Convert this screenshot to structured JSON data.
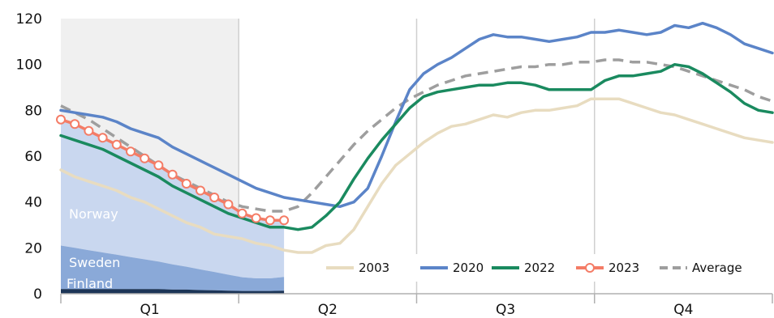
{
  "chart_data": {
    "type": "line",
    "x_unit": "week",
    "x_range": [
      1,
      52
    ],
    "ylim": [
      0,
      120
    ],
    "y_ticks": [
      0,
      20,
      40,
      60,
      80,
      100,
      120
    ],
    "quarters": [
      "Q1",
      "Q2",
      "Q3",
      "Q4"
    ],
    "grid": "vertical lines at quarter boundaries",
    "legend_placement": "bottom-right",
    "shaded_region": {
      "from": 1,
      "to": 13
    },
    "series": [
      {
        "name": "2003",
        "color": "#e8dcc0",
        "x": [
          1,
          2,
          3,
          4,
          5,
          6,
          7,
          8,
          9,
          10,
          11,
          12,
          13,
          14,
          15,
          16,
          17,
          18,
          19,
          20,
          21,
          22,
          23,
          24,
          25,
          26,
          27,
          28,
          29,
          30,
          31,
          32,
          33,
          34,
          35,
          36,
          37,
          38,
          39,
          40,
          41,
          42,
          43,
          44,
          45,
          46,
          47,
          48,
          49,
          50,
          51,
          52
        ],
        "values": [
          54,
          51,
          49,
          47,
          45,
          42,
          40,
          37,
          34,
          31,
          29,
          26,
          25,
          24,
          22,
          21,
          19,
          18,
          18,
          21,
          22,
          28,
          38,
          48,
          56,
          61,
          66,
          70,
          73,
          74,
          76,
          78,
          77,
          79,
          80,
          80,
          81,
          82,
          85,
          85,
          85,
          83,
          81,
          79,
          78,
          76,
          74,
          72,
          70,
          68,
          67,
          66
        ]
      },
      {
        "name": "2020",
        "color": "#5b84c8",
        "x": [
          1,
          2,
          3,
          4,
          5,
          6,
          7,
          8,
          9,
          10,
          11,
          12,
          13,
          14,
          15,
          16,
          17,
          18,
          19,
          20,
          21,
          22,
          23,
          24,
          25,
          26,
          27,
          28,
          29,
          30,
          31,
          32,
          33,
          34,
          35,
          36,
          37,
          38,
          39,
          40,
          41,
          42,
          43,
          44,
          45,
          46,
          47,
          48,
          49,
          50,
          51,
          52
        ],
        "values": [
          80,
          79,
          78,
          77,
          75,
          72,
          70,
          68,
          64,
          61,
          58,
          55,
          52,
          49,
          46,
          44,
          42,
          41,
          40,
          39,
          38,
          40,
          46,
          60,
          75,
          89,
          96,
          100,
          103,
          107,
          111,
          113,
          112,
          112,
          111,
          110,
          111,
          112,
          114,
          114,
          115,
          114,
          113,
          114,
          117,
          116,
          118,
          116,
          113,
          109,
          107,
          105
        ]
      },
      {
        "name": "2022",
        "color": "#1a8a5f",
        "x": [
          1,
          2,
          3,
          4,
          5,
          6,
          7,
          8,
          9,
          10,
          11,
          12,
          13,
          14,
          15,
          16,
          17,
          18,
          19,
          20,
          21,
          22,
          23,
          24,
          25,
          26,
          27,
          28,
          29,
          30,
          31,
          32,
          33,
          34,
          35,
          36,
          37,
          38,
          39,
          40,
          41,
          42,
          43,
          44,
          45,
          46,
          47,
          48,
          49,
          50,
          51,
          52
        ],
        "values": [
          69,
          67,
          65,
          63,
          60,
          57,
          54,
          51,
          47,
          44,
          41,
          38,
          35,
          33,
          31,
          29,
          29,
          28,
          29,
          34,
          40,
          50,
          59,
          67,
          74,
          81,
          86,
          88,
          89,
          90,
          91,
          91,
          92,
          92,
          91,
          89,
          89,
          89,
          89,
          93,
          95,
          95,
          96,
          97,
          100,
          99,
          96,
          92,
          88,
          83,
          80,
          79
        ]
      },
      {
        "name": "2023",
        "color": "#f47c66",
        "markers": true,
        "x": [
          1,
          2,
          3,
          4,
          5,
          6,
          7,
          8,
          9,
          10,
          11,
          12,
          13,
          14,
          15,
          16,
          17
        ],
        "values": [
          76,
          74,
          71,
          68,
          65,
          62,
          59,
          56,
          52,
          48,
          45,
          42,
          39,
          35,
          33,
          32,
          32
        ]
      },
      {
        "name": "Average",
        "color": "#9e9e9e",
        "dashed": true,
        "x": [
          1,
          2,
          3,
          4,
          5,
          6,
          7,
          8,
          9,
          10,
          11,
          12,
          13,
          14,
          15,
          16,
          17,
          18,
          19,
          20,
          21,
          22,
          23,
          24,
          25,
          26,
          27,
          28,
          29,
          30,
          31,
          32,
          33,
          34,
          35,
          36,
          37,
          38,
          39,
          40,
          41,
          42,
          43,
          44,
          45,
          46,
          47,
          48,
          49,
          50,
          51,
          52
        ],
        "values": [
          82,
          79,
          76,
          72,
          68,
          64,
          60,
          56,
          52,
          49,
          46,
          43,
          40,
          38,
          37,
          36,
          36,
          38,
          44,
          51,
          58,
          65,
          71,
          76,
          81,
          85,
          88,
          91,
          93,
          95,
          96,
          97,
          98,
          99,
          99,
          100,
          100,
          101,
          101,
          102,
          102,
          101,
          101,
          100,
          99,
          97,
          95,
          93,
          91,
          89,
          86,
          84
        ]
      }
    ],
    "stacked_areas": [
      {
        "name": "Finland",
        "color": "#1c3557",
        "x": [
          1,
          2,
          3,
          4,
          5,
          6,
          7,
          8,
          9,
          10,
          11,
          12,
          13,
          14,
          15,
          16,
          17
        ],
        "values": [
          2,
          2,
          2,
          2,
          2,
          2,
          2,
          2,
          1.8,
          1.8,
          1.6,
          1.5,
          1.3,
          1.2,
          1.2,
          1.2,
          1.3
        ]
      },
      {
        "name": "Sweden",
        "color": "#8aa9d8",
        "x": [
          1,
          2,
          3,
          4,
          5,
          6,
          7,
          8,
          9,
          10,
          11,
          12,
          13,
          14,
          15,
          16,
          17
        ],
        "values": [
          19,
          18,
          17,
          16,
          15,
          14,
          13,
          12,
          11,
          10,
          9,
          8,
          7,
          6,
          5.5,
          5.5,
          6
        ]
      },
      {
        "name": "Norway",
        "color": "#c9d7ef",
        "x": [
          1,
          2,
          3,
          4,
          5,
          6,
          7,
          8,
          9,
          10,
          11,
          12,
          13,
          14,
          15,
          16,
          17
        ],
        "values": [
          55,
          54,
          52,
          50,
          48,
          46,
          44,
          42,
          39,
          36,
          34,
          32,
          30,
          28,
          26,
          25,
          24
        ]
      }
    ]
  }
}
